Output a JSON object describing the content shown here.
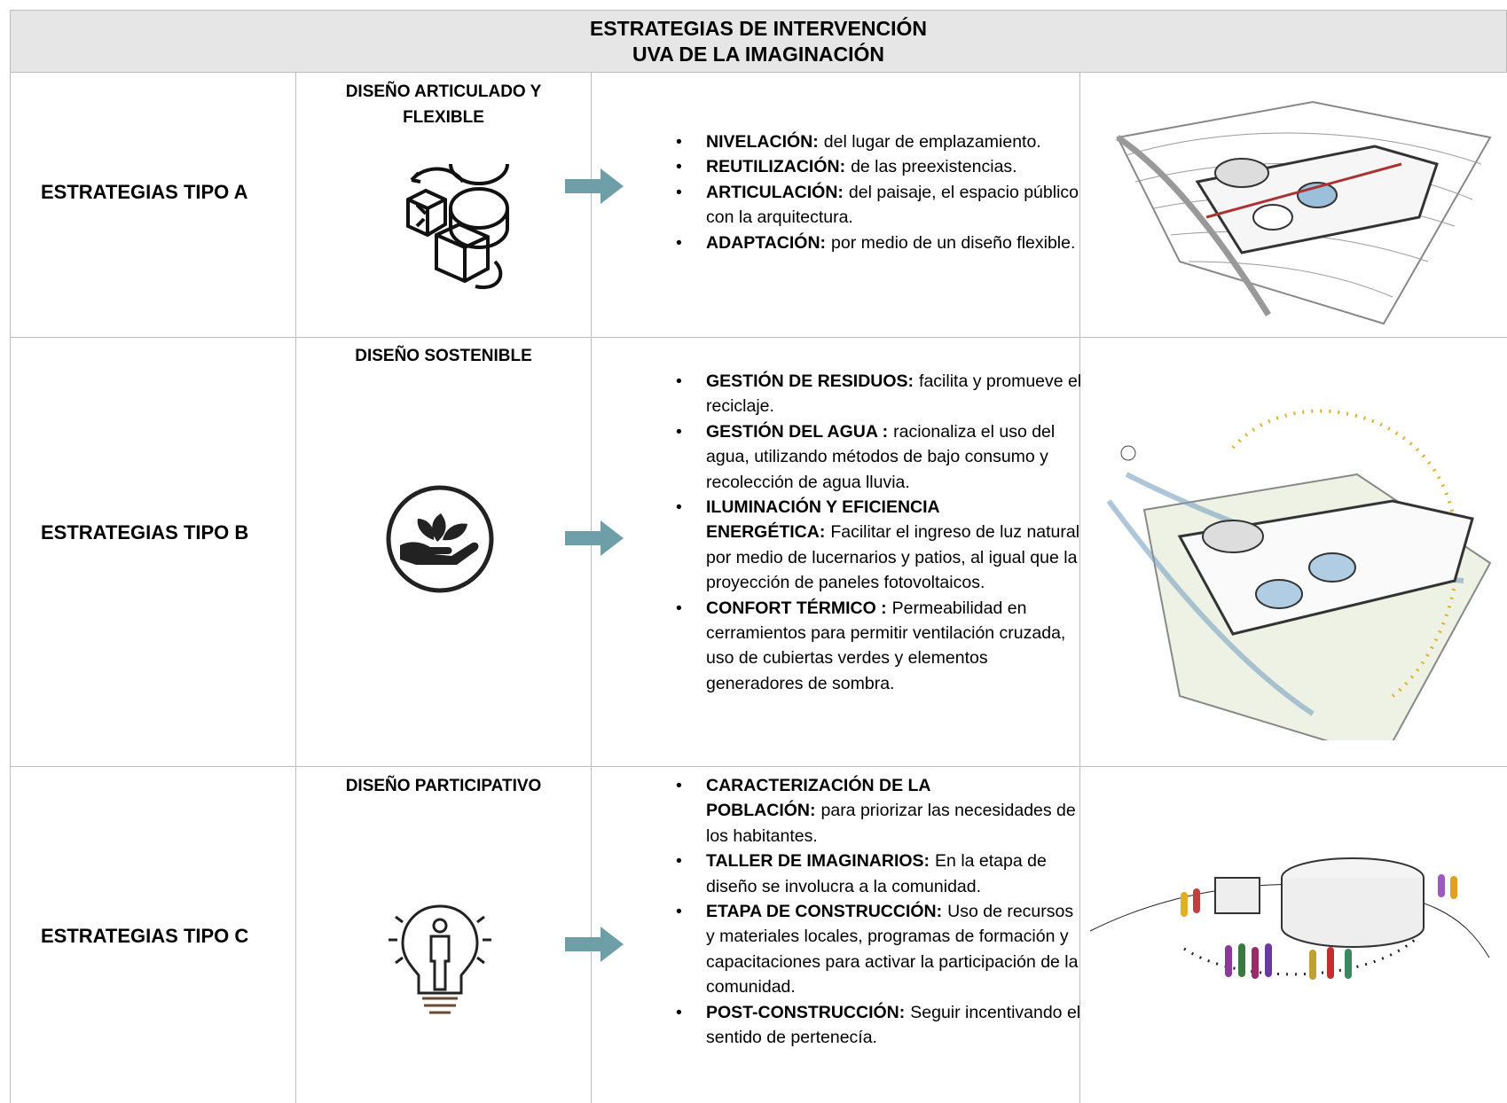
{
  "header": {
    "title": [
      "ESTRATEGIAS DE INTERVENCIÓN",
      "UVA DE LA IMAGINACIÓN"
    ]
  },
  "rows": [
    {
      "label": "ESTRATEGIAS TIPO A",
      "strategy": "DISEÑO ARTICULADO Y FLEXIBLE",
      "items": [
        {
          "term": "NIVELACIÓN:",
          "text": "del lugar de emplazamiento."
        },
        {
          "term": "REUTILIZACIÓN:",
          "text": "de las preexistencias."
        },
        {
          "term": "ARTICULACIÓN:",
          "text": "del paisaje, el espacio público con la arquitectura."
        },
        {
          "term": "ADAPTACIÓN:",
          "text": "por medio de un diseño flexible."
        }
      ]
    },
    {
      "label": "ESTRATEGIAS TIPO B",
      "strategy": "DISEÑO SOSTENIBLE",
      "items": [
        {
          "term": "GESTIÓN DE RESIDUOS:",
          "text": "facilita y promueve el reciclaje."
        },
        {
          "term": "GESTIÓN DEL AGUA :",
          "text": "racionaliza el uso del agua, utilizando métodos de bajo consumo y recolección de agua lluvia."
        },
        {
          "term": "ILUMINACIÓN Y EFICIENCIA ENERGÉTICA:",
          "text": "Facilitar el ingreso de luz natural por medio de lucernarios y patios, al igual que la proyección de paneles fotovoltaicos."
        },
        {
          "term": "CONFORT TÉRMICO :",
          "text": "Permeabilidad en cerramientos para permitir ventilación cruzada, uso de cubiertas verdes y elementos generadores de sombra."
        }
      ]
    },
    {
      "label": "ESTRATEGIAS TIPO C",
      "strategy": "DISEÑO PARTICIPATIVO",
      "items": [
        {
          "term": "CARACTERIZACIÓN DE LA POBLACIÓN:",
          "text": "para priorizar las necesidades de los habitantes."
        },
        {
          "term": "TALLER DE IMAGINARIOS:",
          "text": "En la etapa de diseño se involucra a la comunidad."
        },
        {
          "term": "ETAPA DE CONSTRUCCIÓN:",
          "text": "Uso de recursos y materiales locales, programas de formación y capacitaciones para activar la participación de la comunidad."
        },
        {
          "term": "POST-CONSTRUCCIÓN:",
          "text": "Seguir incentivando el sentido de pertenecía."
        }
      ]
    }
  ]
}
